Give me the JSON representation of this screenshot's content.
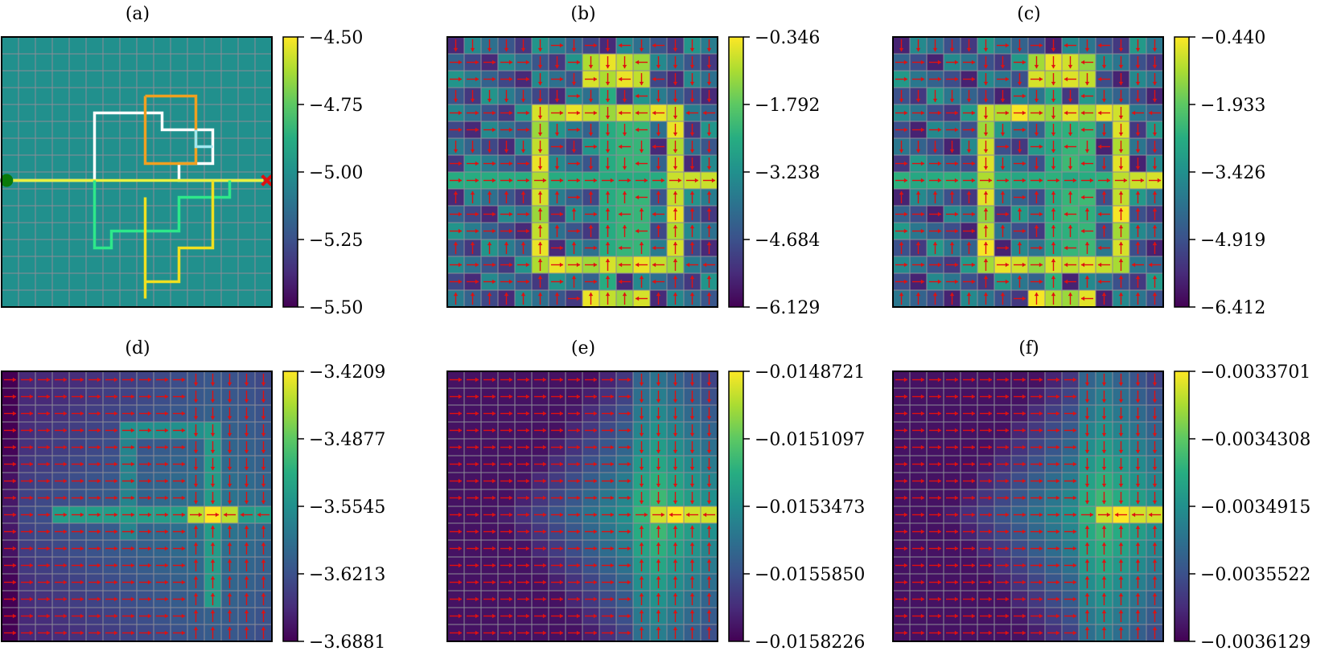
{
  "figure": {
    "colormap": "viridis",
    "colors": {
      "grid_line": "#8c8c96",
      "arrow": "#e01010",
      "start_marker": "#0a7a0a",
      "goal_marker": "#e01010",
      "frame": "#000000"
    }
  },
  "chart_data": [
    {
      "type": "heatmap",
      "title": "(a)",
      "grid": {
        "rows": 16,
        "cols": 16
      },
      "uniform_value": -5.0,
      "colorbar": {
        "min": -5.5,
        "max": -4.5,
        "ticks": [
          "−4.50",
          "−4.75",
          "−5.00",
          "−5.25",
          "−5.50"
        ]
      },
      "start": {
        "row": 8,
        "col": 0
      },
      "goal": {
        "row": 8,
        "col": 15
      },
      "trajectories": [
        {
          "color": "#ffffff",
          "cells": [
            [
              8,
              0
            ],
            [
              8,
              5
            ],
            [
              4,
              5
            ],
            [
              4,
              9
            ],
            [
              5,
              9
            ],
            [
              5,
              12
            ],
            [
              7,
              12
            ],
            [
              7,
              10
            ],
            [
              8,
              10
            ],
            [
              8,
              15
            ]
          ]
        },
        {
          "color": "#e8f040",
          "cells": [
            [
              8,
              0
            ],
            [
              8,
              15
            ]
          ]
        },
        {
          "color": "#2ee88a",
          "cells": [
            [
              8,
              5
            ],
            [
              12,
              5
            ],
            [
              12,
              6
            ],
            [
              11,
              6
            ],
            [
              11,
              10
            ],
            [
              9,
              10
            ],
            [
              9,
              13
            ],
            [
              8,
              13
            ]
          ]
        },
        {
          "color": "#f0e020",
          "cells": [
            [
              9,
              8
            ],
            [
              15,
              8
            ],
            [
              14,
              8
            ],
            [
              14,
              10
            ],
            [
              12,
              10
            ],
            [
              12,
              12
            ],
            [
              10,
              12
            ],
            [
              8,
              12
            ]
          ]
        },
        {
          "color": "#f0a020",
          "cells": [
            [
              3,
              8
            ],
            [
              3,
              11
            ],
            [
              6,
              11
            ],
            [
              7,
              11
            ],
            [
              7,
              8
            ],
            [
              5,
              8
            ],
            [
              3,
              8
            ]
          ]
        },
        {
          "color": "#a0e8f0",
          "cells": [
            [
              5,
              11
            ],
            [
              6,
              11
            ],
            [
              6,
              12
            ]
          ]
        }
      ]
    },
    {
      "type": "heatmap",
      "title": "(b)",
      "pattern": "ring",
      "grid": {
        "rows": 16,
        "cols": 16
      },
      "values_range": [
        -6.129,
        -0.346
      ],
      "colorbar": {
        "min": -6.129,
        "max": -0.346,
        "ticks": [
          "−0.346",
          "−1.792",
          "−3.238",
          "−4.684",
          "−6.129"
        ]
      }
    },
    {
      "type": "heatmap",
      "title": "(c)",
      "pattern": "ring",
      "grid": {
        "rows": 16,
        "cols": 16
      },
      "values_range": [
        -6.412,
        -0.44
      ],
      "colorbar": {
        "min": -6.412,
        "max": -0.44,
        "ticks": [
          "−0.440",
          "−1.933",
          "−3.426",
          "−4.919",
          "−6.412"
        ]
      }
    },
    {
      "type": "heatmap",
      "title": "(d)",
      "pattern": "cross",
      "grid": {
        "rows": 16,
        "cols": 16
      },
      "focus": {
        "row": 8,
        "col": 12
      },
      "values_range": [
        -3.6881,
        -3.4209
      ],
      "colorbar": {
        "min": -3.6881,
        "max": -3.4209,
        "ticks": [
          "−3.4209",
          "−3.4877",
          "−3.5545",
          "−3.6213",
          "−3.6881"
        ]
      }
    },
    {
      "type": "heatmap",
      "title": "(e)",
      "pattern": "corner",
      "grid": {
        "rows": 16,
        "cols": 16
      },
      "focus": {
        "row": 8,
        "col": 12
      },
      "values_range": [
        -0.0158226,
        -0.0148721
      ],
      "colorbar": {
        "min": -0.0158226,
        "max": -0.0148721,
        "ticks": [
          "−0.0148721",
          "−0.0151097",
          "−0.0153473",
          "−0.0155850",
          "−0.0158226"
        ]
      }
    },
    {
      "type": "heatmap",
      "title": "(f)",
      "pattern": "corner",
      "grid": {
        "rows": 16,
        "cols": 16
      },
      "focus": {
        "row": 8,
        "col": 12
      },
      "values_range": [
        -0.0036129,
        -0.0033701
      ],
      "colorbar": {
        "min": -0.0036129,
        "max": -0.0033701,
        "ticks": [
          "−0.0033701",
          "−0.0034308",
          "−0.0034915",
          "−0.0035522",
          "−0.0036129"
        ]
      }
    }
  ]
}
